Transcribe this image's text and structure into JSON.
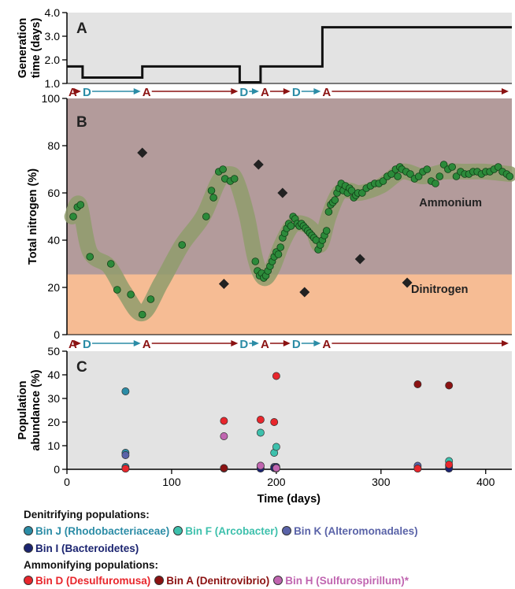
{
  "chart_data": [
    {
      "panel": "A",
      "type": "line",
      "ylabel": "Generation time (days)",
      "ylim": [
        1.0,
        4.0
      ],
      "yticks": [
        "1.0",
        "2.0",
        "3.0",
        "4.0"
      ],
      "xlim": [
        0,
        425
      ],
      "series": [
        {
          "x": [
            0,
            15,
            15,
            72,
            72,
            165,
            165,
            185,
            185,
            244,
            244,
            425
          ],
          "y": [
            1.72,
            1.72,
            1.25,
            1.25,
            1.72,
            1.72,
            1.05,
            1.05,
            1.72,
            1.72,
            3.38,
            3.38
          ]
        }
      ],
      "grid": false
    },
    {
      "panel": "B",
      "type": "scatter",
      "ylabel": "Total nitrogen (%)",
      "ylim": [
        0,
        100
      ],
      "yticks": [
        "0",
        "20",
        "40",
        "60",
        "80",
        "100"
      ],
      "xlim": [
        0,
        425
      ],
      "region_labels": [
        "Ammonium",
        "Dinitrogen"
      ],
      "ammonium_dinitrogen_boundary": 25.5,
      "ammonium_points": [
        [
          6,
          50
        ],
        [
          10,
          54
        ],
        [
          13,
          55
        ],
        [
          22,
          33
        ],
        [
          42,
          30
        ],
        [
          48,
          19
        ],
        [
          61,
          17
        ],
        [
          72,
          8.5
        ],
        [
          80,
          15
        ],
        [
          110,
          38
        ],
        [
          133,
          50
        ],
        [
          138,
          61
        ],
        [
          140,
          58
        ],
        [
          145,
          69
        ],
        [
          149,
          70
        ],
        [
          151,
          66
        ],
        [
          156,
          65
        ],
        [
          160,
          66
        ],
        [
          180,
          31
        ],
        [
          182,
          27
        ],
        [
          184,
          25
        ],
        [
          186,
          26
        ],
        [
          188,
          24
        ],
        [
          190,
          25
        ],
        [
          192,
          27
        ],
        [
          194,
          29
        ],
        [
          196,
          31
        ],
        [
          198,
          33
        ],
        [
          200,
          35
        ],
        [
          202,
          34
        ],
        [
          204,
          37
        ],
        [
          206,
          41
        ],
        [
          208,
          43
        ],
        [
          210,
          45
        ],
        [
          212,
          47
        ],
        [
          214,
          46
        ],
        [
          216,
          50
        ],
        [
          218,
          49
        ],
        [
          220,
          47
        ],
        [
          222,
          46
        ],
        [
          224,
          47
        ],
        [
          226,
          46
        ],
        [
          228,
          45
        ],
        [
          230,
          44
        ],
        [
          232,
          43
        ],
        [
          234,
          42
        ],
        [
          236,
          41
        ],
        [
          238,
          40
        ],
        [
          240,
          36
        ],
        [
          242,
          38
        ],
        [
          244,
          40
        ],
        [
          246,
          42
        ],
        [
          248,
          44
        ],
        [
          250,
          52
        ],
        [
          252,
          55
        ],
        [
          254,
          56
        ],
        [
          256,
          57
        ],
        [
          258,
          60
        ],
        [
          260,
          62
        ],
        [
          262,
          64
        ],
        [
          264,
          61
        ],
        [
          266,
          63
        ],
        [
          268,
          60
        ],
        [
          270,
          62
        ],
        [
          272,
          61
        ],
        [
          274,
          58
        ],
        [
          276,
          59
        ],
        [
          278,
          60
        ],
        [
          282,
          60
        ],
        [
          286,
          62
        ],
        [
          290,
          63
        ],
        [
          294,
          64
        ],
        [
          298,
          64
        ],
        [
          302,
          65
        ],
        [
          306,
          67
        ],
        [
          310,
          68
        ],
        [
          314,
          70
        ],
        [
          316,
          67
        ],
        [
          318,
          71
        ],
        [
          320,
          70
        ],
        [
          324,
          69
        ],
        [
          328,
          68
        ],
        [
          332,
          66
        ],
        [
          336,
          67
        ],
        [
          340,
          69
        ],
        [
          344,
          70
        ],
        [
          348,
          65
        ],
        [
          352,
          64
        ],
        [
          356,
          67
        ],
        [
          360,
          72
        ],
        [
          364,
          70
        ],
        [
          368,
          71
        ],
        [
          372,
          67
        ],
        [
          376,
          69
        ],
        [
          380,
          68
        ],
        [
          384,
          68
        ],
        [
          388,
          69
        ],
        [
          392,
          69
        ],
        [
          396,
          68
        ],
        [
          400,
          69
        ],
        [
          404,
          69
        ],
        [
          408,
          70
        ],
        [
          412,
          71
        ],
        [
          416,
          69
        ],
        [
          420,
          68
        ],
        [
          423,
          67
        ]
      ],
      "band": {
        "x": [
          5,
          12,
          22,
          40,
          55,
          72,
          90,
          110,
          130,
          145,
          155,
          162,
          172,
          180,
          188,
          196,
          205,
          215,
          225,
          235,
          242,
          250,
          260,
          270,
          280,
          300,
          320,
          340,
          360,
          380,
          400,
          423
        ],
        "y": [
          50,
          55,
          35,
          29,
          18,
          9,
          22,
          38,
          50,
          65,
          68,
          65,
          50,
          32,
          24,
          28,
          38,
          46,
          47,
          44,
          38,
          50,
          60,
          61,
          60,
          63,
          69,
          67,
          69,
          69,
          69,
          68
        ]
      },
      "dinitrogen_diamonds": [
        [
          72,
          77
        ],
        [
          150,
          21.5
        ],
        [
          183,
          72
        ],
        [
          206,
          60
        ],
        [
          227,
          18
        ],
        [
          280,
          32
        ],
        [
          325,
          22
        ]
      ]
    },
    {
      "panel": "C",
      "type": "scatter",
      "xlabel": "Time (days)",
      "ylabel": "Population abundance (%)",
      "ylim": [
        0,
        50
      ],
      "yticks": [
        "0",
        "10",
        "20",
        "30",
        "40",
        "50"
      ],
      "xlim": [
        0,
        425
      ],
      "xticks": [
        "0",
        "100",
        "200",
        "300",
        "400"
      ],
      "series": [
        {
          "name": "Bin J (Rhodobacteriaceae)",
          "color": "#2b8ca6",
          "points": [
            [
              56,
              33
            ],
            [
              56,
              7
            ],
            [
              56,
              1
            ],
            [
              150,
              0.5
            ],
            [
              185,
              0.5
            ],
            [
              200,
              0.5
            ],
            [
              335,
              0.5
            ],
            [
              365,
              1.5
            ]
          ]
        },
        {
          "name": "Bin F (Arcobacter)",
          "color": "#3dc0ac",
          "points": [
            [
              185,
              15.5
            ],
            [
              198,
              7
            ],
            [
              200,
              9.5
            ],
            [
              365,
              3.5
            ],
            [
              150,
              0.5
            ]
          ]
        },
        {
          "name": "Bin K (Alteromonadales)",
          "color": "#5a63a8",
          "points": [
            [
              56,
              6
            ],
            [
              185,
              1.5
            ],
            [
              198,
              1
            ],
            [
              335,
              1.5
            ],
            [
              365,
              0.5
            ]
          ]
        },
        {
          "name": "Bin I (Bacteroidetes)",
          "color": "#1b2470",
          "points": [
            [
              56,
              0.3
            ],
            [
              150,
              0.3
            ],
            [
              185,
              0.3
            ],
            [
              198,
              0.5
            ],
            [
              200,
              1
            ],
            [
              335,
              0.3
            ],
            [
              365,
              0.3
            ]
          ]
        },
        {
          "name": "Bin D (Desulfuromusa)",
          "color": "#e8262c",
          "points": [
            [
              56,
              0.3
            ],
            [
              150,
              20.5
            ],
            [
              185,
              21
            ],
            [
              198,
              20
            ],
            [
              200,
              39.5
            ],
            [
              335,
              0.3
            ],
            [
              365,
              2
            ]
          ]
        },
        {
          "name": "Bin A (Denitrovibrio)",
          "color": "#8b1212",
          "points": [
            [
              335,
              36
            ],
            [
              365,
              35.5
            ],
            [
              150,
              0.5
            ],
            [
              200,
              0.3
            ]
          ]
        },
        {
          "name": "Bin H (Sulfurospirillum)*",
          "color": "#c065b0",
          "points": [
            [
              150,
              14
            ],
            [
              185,
              1.5
            ],
            [
              200,
              0.5
            ]
          ]
        }
      ]
    }
  ],
  "phase_strip": [
    {
      "x": 0,
      "label": "A",
      "kind": "A"
    },
    {
      "x": 15,
      "label": "D",
      "kind": "D"
    },
    {
      "x": 72,
      "label": "A",
      "kind": "A"
    },
    {
      "x": 165,
      "label": "D",
      "kind": "D"
    },
    {
      "x": 185,
      "label": "A",
      "kind": "A"
    },
    {
      "x": 215,
      "label": "D",
      "kind": "D"
    },
    {
      "x": 244,
      "label": "A",
      "kind": "A"
    }
  ],
  "colors": {
    "phase_A": "#8b1212",
    "phase_D": "#2b8ca6",
    "panel_a_bg": "#e3e3e3",
    "ammonium_bg": "#b39b9b",
    "dinitrogen_bg": "#f6bc94",
    "panel_c_bg": "#e3e3e3",
    "point_green": "#2c8a3a",
    "band": "#8f9c6c"
  },
  "legend": {
    "denitrifying_title": "Denitrifying populations:",
    "ammonifying_title": "Ammonifying populations:",
    "denitrifying_rows": [
      [
        {
          "label": "Bin J (Rhodobacteriaceae)",
          "color": "#2b8ca6"
        },
        {
          "label": "Bin F (Arcobacter)",
          "color": "#3dc0ac"
        },
        {
          "label": "Bin K (Alteromonadales)",
          "color": "#5a63a8"
        }
      ],
      [
        {
          "label": "Bin I (Bacteroidetes)",
          "color": "#1b2470"
        }
      ]
    ],
    "ammonifying_rows": [
      [
        {
          "label": "Bin D (Desulfuromusa)",
          "color": "#e8262c"
        },
        {
          "label": "Bin A (Denitrovibrio)",
          "color": "#8b1212"
        },
        {
          "label": "Bin H (Sulfurospirillum)*",
          "color": "#c065b0"
        }
      ]
    ]
  }
}
